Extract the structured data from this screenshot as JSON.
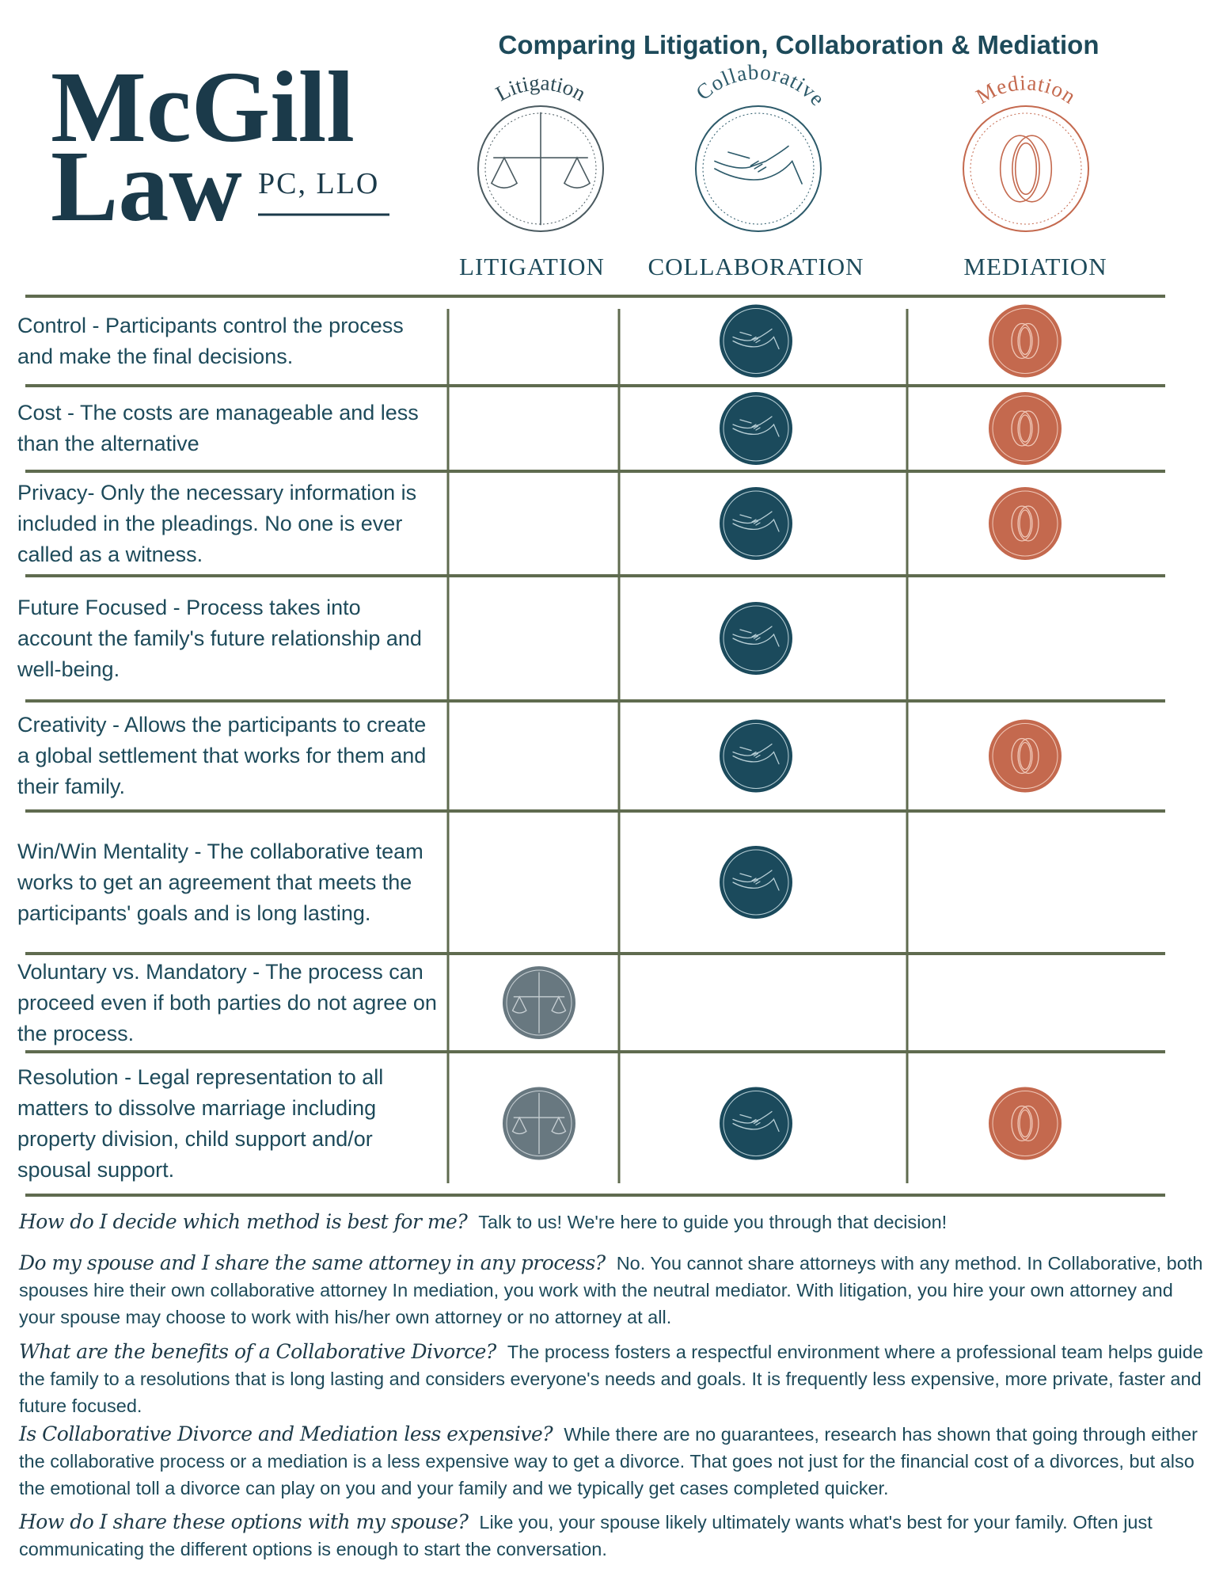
{
  "header": {
    "brand": "McGill",
    "brand_line2": "Law",
    "suffix": "PC, LLO",
    "title": "Comparing Litigation, Collaboration & Mediation",
    "logos": [
      "Litigation",
      "Collaborative",
      "Mediation"
    ],
    "columns": [
      "LITIGATION",
      "COLLABORATION",
      "MEDIATION"
    ]
  },
  "table": {
    "rows": [
      {
        "text": "Control -  Participants control the process and make the final decisions.",
        "marks": [
          false,
          true,
          true
        ]
      },
      {
        "text": "Cost -  The costs are manageable and less than the alternative",
        "marks": [
          false,
          true,
          true
        ]
      },
      {
        "text": "Privacy-  Only the necessary information is included in the pleadings. No one is ever called as a witness.",
        "marks": [
          false,
          true,
          true
        ]
      },
      {
        "text": "Future Focused -  Process takes into account the family's future relationship and well-being.",
        "marks": [
          false,
          true,
          false
        ]
      },
      {
        "text": "Creativity -  Allows the participants to create a global settlement that works for them and their family.",
        "marks": [
          false,
          true,
          true
        ]
      },
      {
        "text": "Win/Win Mentality -  The collaborative team works to get an agreement that meets the participants' goals and is long lasting.",
        "marks": [
          false,
          true,
          false
        ]
      },
      {
        "text": "Voluntary vs. Mandatory - The process can proceed even if both parties do not agree on the process.",
        "marks": [
          true,
          false,
          false
        ]
      },
      {
        "text": "Resolution -  Legal representation to all matters to dissolve marriage including property division, child support and/or spousal support.",
        "marks": [
          true,
          true,
          true
        ]
      }
    ]
  },
  "faq": [
    {
      "question": "How do I decide which method is best for me?",
      "answer": "Talk to us! We're here to guide you through that decision!"
    },
    {
      "question": "Do my spouse and I share the same attorney in any process?",
      "answer": "No. You cannot share attorneys with any method. In Collaborative, both spouses hire their own collaborative attorney In mediation, you work with the neutral mediator. With litigation, you hire your own attorney and your spouse may choose to work with his/her own attorney or no attorney at all."
    },
    {
      "question": "What are the benefits of a Collaborative Divorce?",
      "answer": "The process fosters a respectful environment where a professional team helps guide the family to a resolutions that is long lasting and considers everyone's needs and goals. It is frequently less expensive, more private, faster and future focused."
    },
    {
      "question": "Is Collaborative Divorce and Mediation less expensive?",
      "answer": "While there are no guarantees, research has shown that going through either the collaborative process or a mediation is a less expensive way to get a divorce. That goes not just for the financial cost of a divorces, but also the emotional toll a divorce can play on you and your family and we typically get cases completed quicker."
    },
    {
      "question": "How do I share these options with my spouse?",
      "answer": "Like you, your spouse likely ultimately wants what's best for your family. Often just communicating the different options is enough to start the conversation."
    }
  ]
}
